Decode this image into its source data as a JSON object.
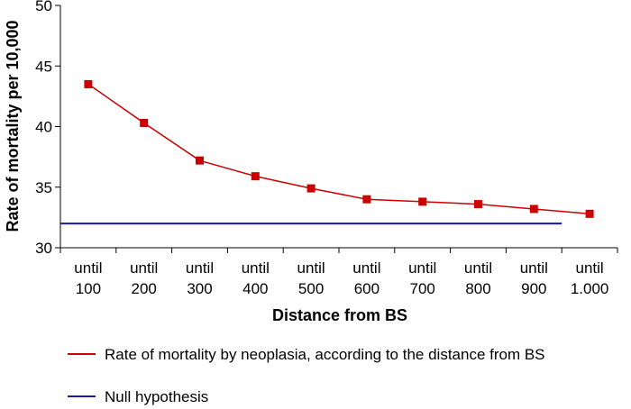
{
  "chart_data": {
    "type": "line",
    "title": "",
    "xlabel": "Distance from BS",
    "ylabel": "Rate of mortality per 10,000",
    "ylim": [
      30,
      50
    ],
    "yticks": [
      "30",
      "35",
      "40",
      "45",
      "50"
    ],
    "categories": [
      {
        "top": "until",
        "bottom": "100"
      },
      {
        "top": "until",
        "bottom": "200"
      },
      {
        "top": "until",
        "bottom": "300"
      },
      {
        "top": "until",
        "bottom": "400"
      },
      {
        "top": "until",
        "bottom": "500"
      },
      {
        "top": "until",
        "bottom": "600"
      },
      {
        "top": "until",
        "bottom": "700"
      },
      {
        "top": "until",
        "bottom": "800"
      },
      {
        "top": "until",
        "bottom": "900"
      },
      {
        "top": "until",
        "bottom": "1.000"
      }
    ],
    "series": [
      {
        "name": "Rate of mortality by neoplasia, according to the distance from BS",
        "color": "#cc0000",
        "marker": "square",
        "values": [
          43.5,
          40.3,
          37.2,
          35.9,
          34.9,
          34.0,
          33.8,
          33.6,
          33.2,
          32.8
        ]
      },
      {
        "name": "Null hypothesis",
        "color": "#1a1aa0",
        "marker": "none",
        "value": 32.0,
        "x_range": [
          -0.5,
          8.5
        ]
      }
    ],
    "legend_position": "bottom"
  }
}
